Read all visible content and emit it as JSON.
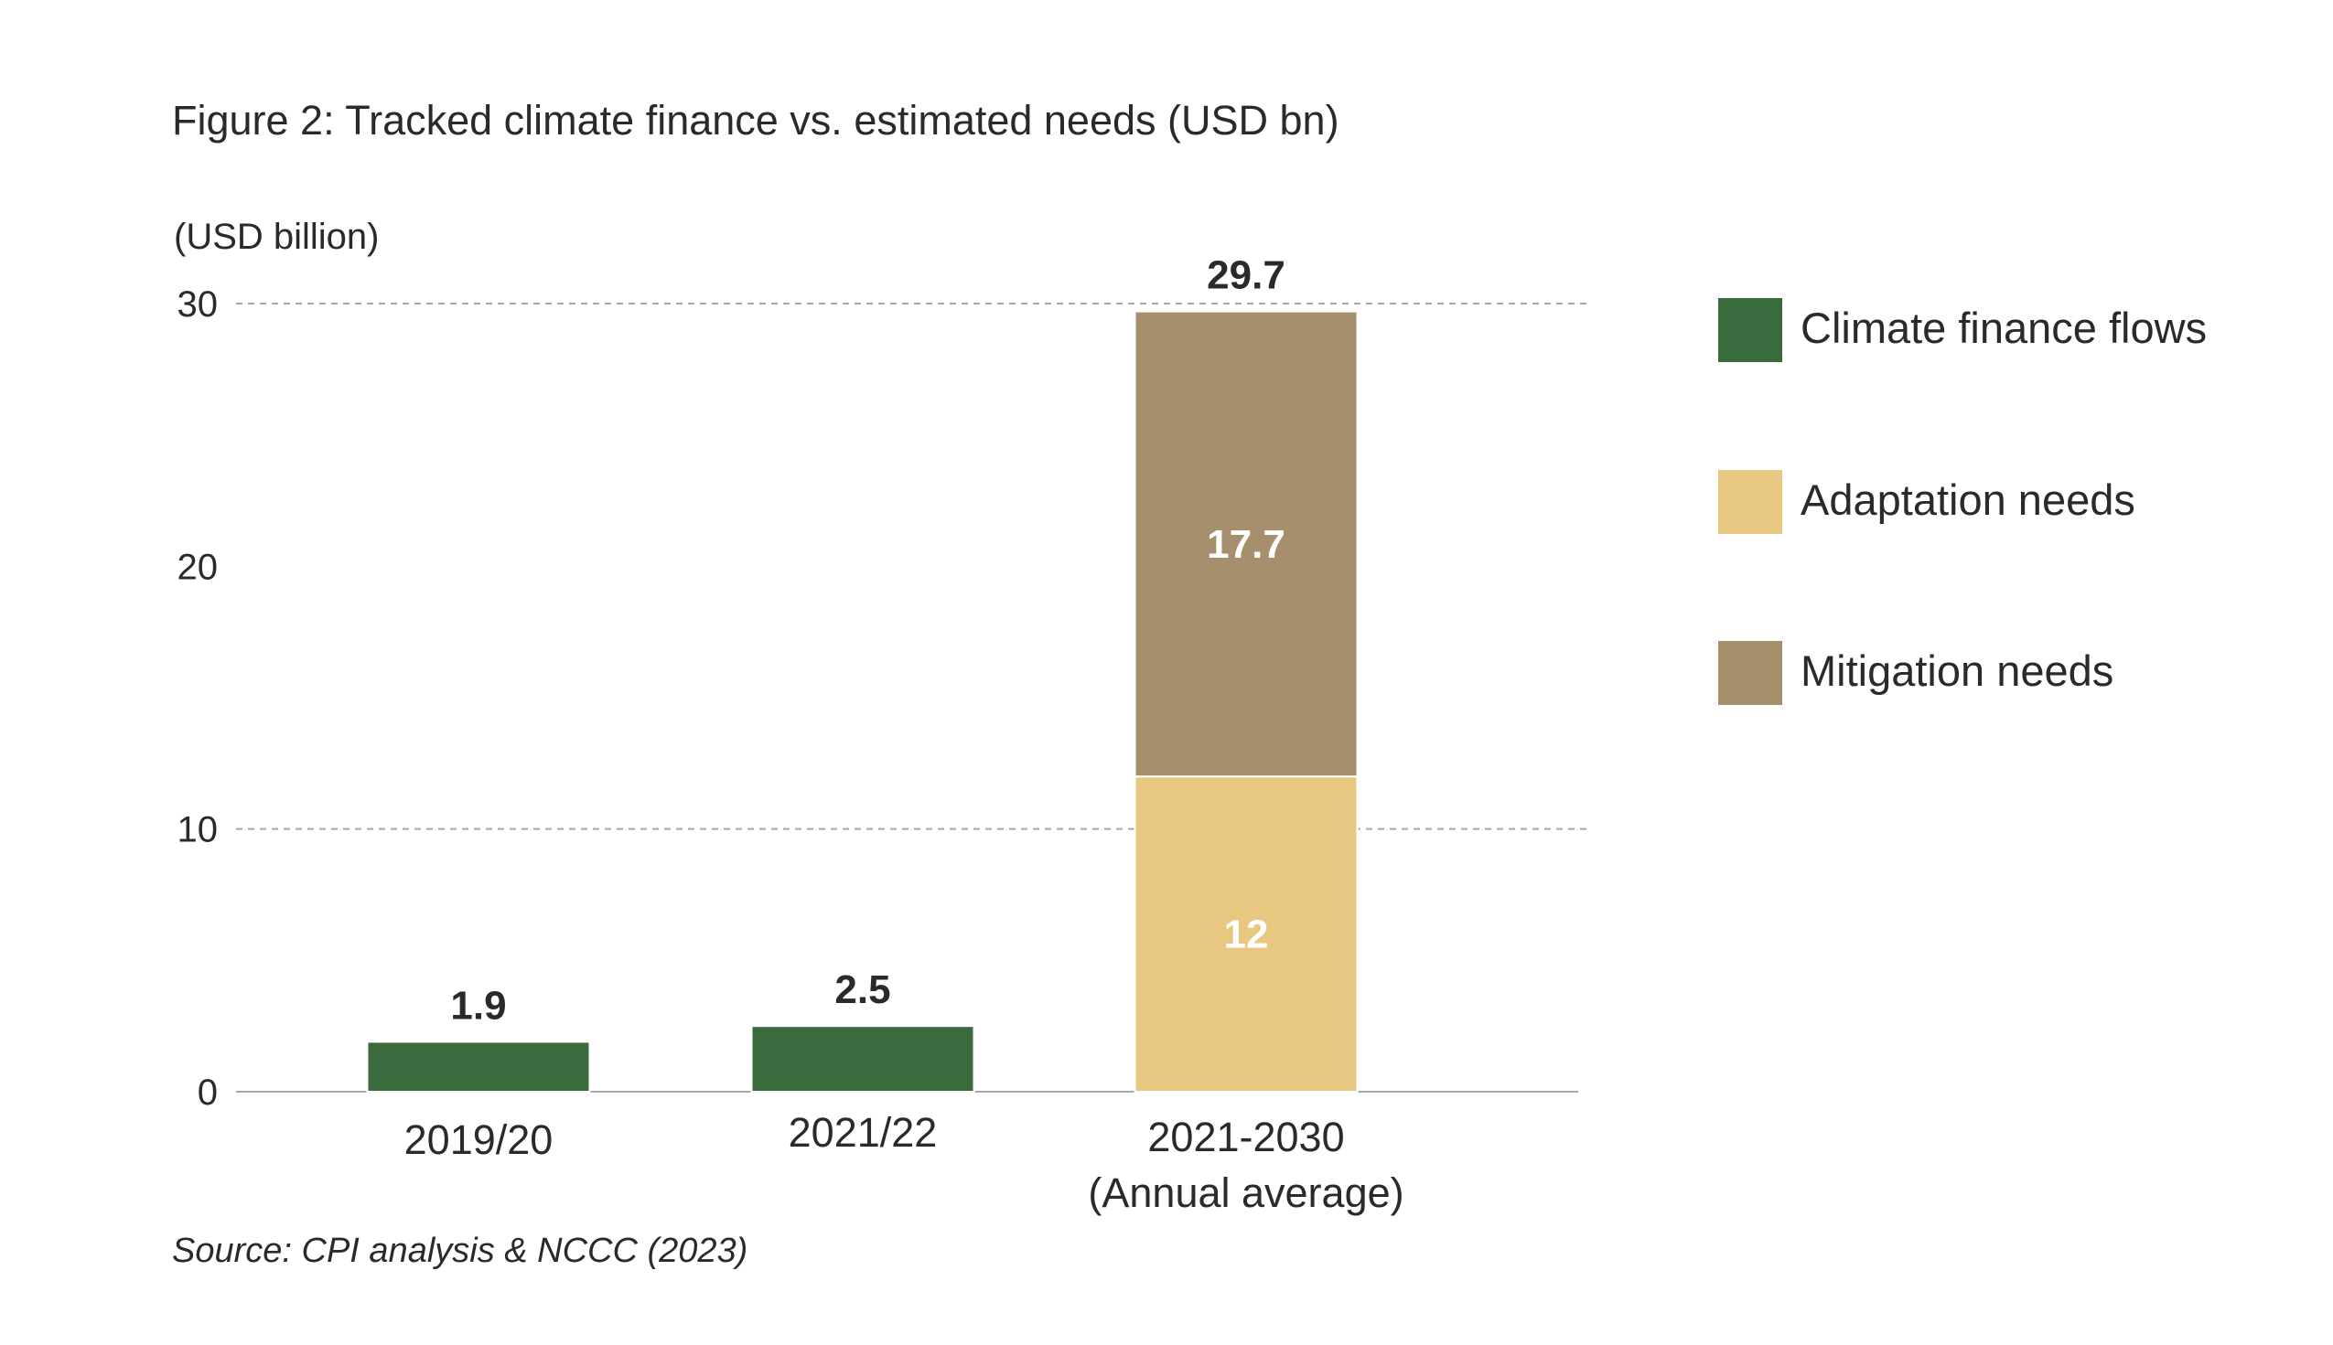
{
  "figure_title": "Figure 2: Tracked climate finance vs. estimated needs (USD bn)",
  "source_note": "Source: CPI analysis & NCCC (2023)",
  "colors": {
    "climate_finance": "#3a6b3c",
    "adaptation": "#e8c880",
    "mitigation": "#a58f6c",
    "text": "#2a2a2a",
    "grid": "#a8a8a8",
    "axis": "#a8a8a8",
    "inner_label": "#ffffff"
  },
  "chart_data": {
    "type": "bar",
    "stacked": true,
    "ylabel": "(USD billion)",
    "ylim": [
      0,
      30
    ],
    "yticks": [
      0,
      10,
      20,
      30
    ],
    "grid": "dashed at 10 and 30",
    "legend_position": "right",
    "categories": [
      [
        "2019/20"
      ],
      [
        "2021/22"
      ],
      [
        "2021-2030",
        "(Annual average)"
      ]
    ],
    "series": [
      {
        "name": "Climate finance flows",
        "values": [
          1.9,
          2.5,
          null
        ]
      },
      {
        "name": "Adaptation needs",
        "values": [
          null,
          null,
          12
        ]
      },
      {
        "name": "Mitigation needs",
        "values": [
          null,
          null,
          17.7
        ]
      }
    ],
    "segment_labels": [
      {
        "category": 2,
        "series": 1,
        "text": "12"
      },
      {
        "category": 2,
        "series": 2,
        "text": "17.7"
      }
    ],
    "total_labels": [
      "1.9",
      "2.5",
      "29.7"
    ]
  }
}
